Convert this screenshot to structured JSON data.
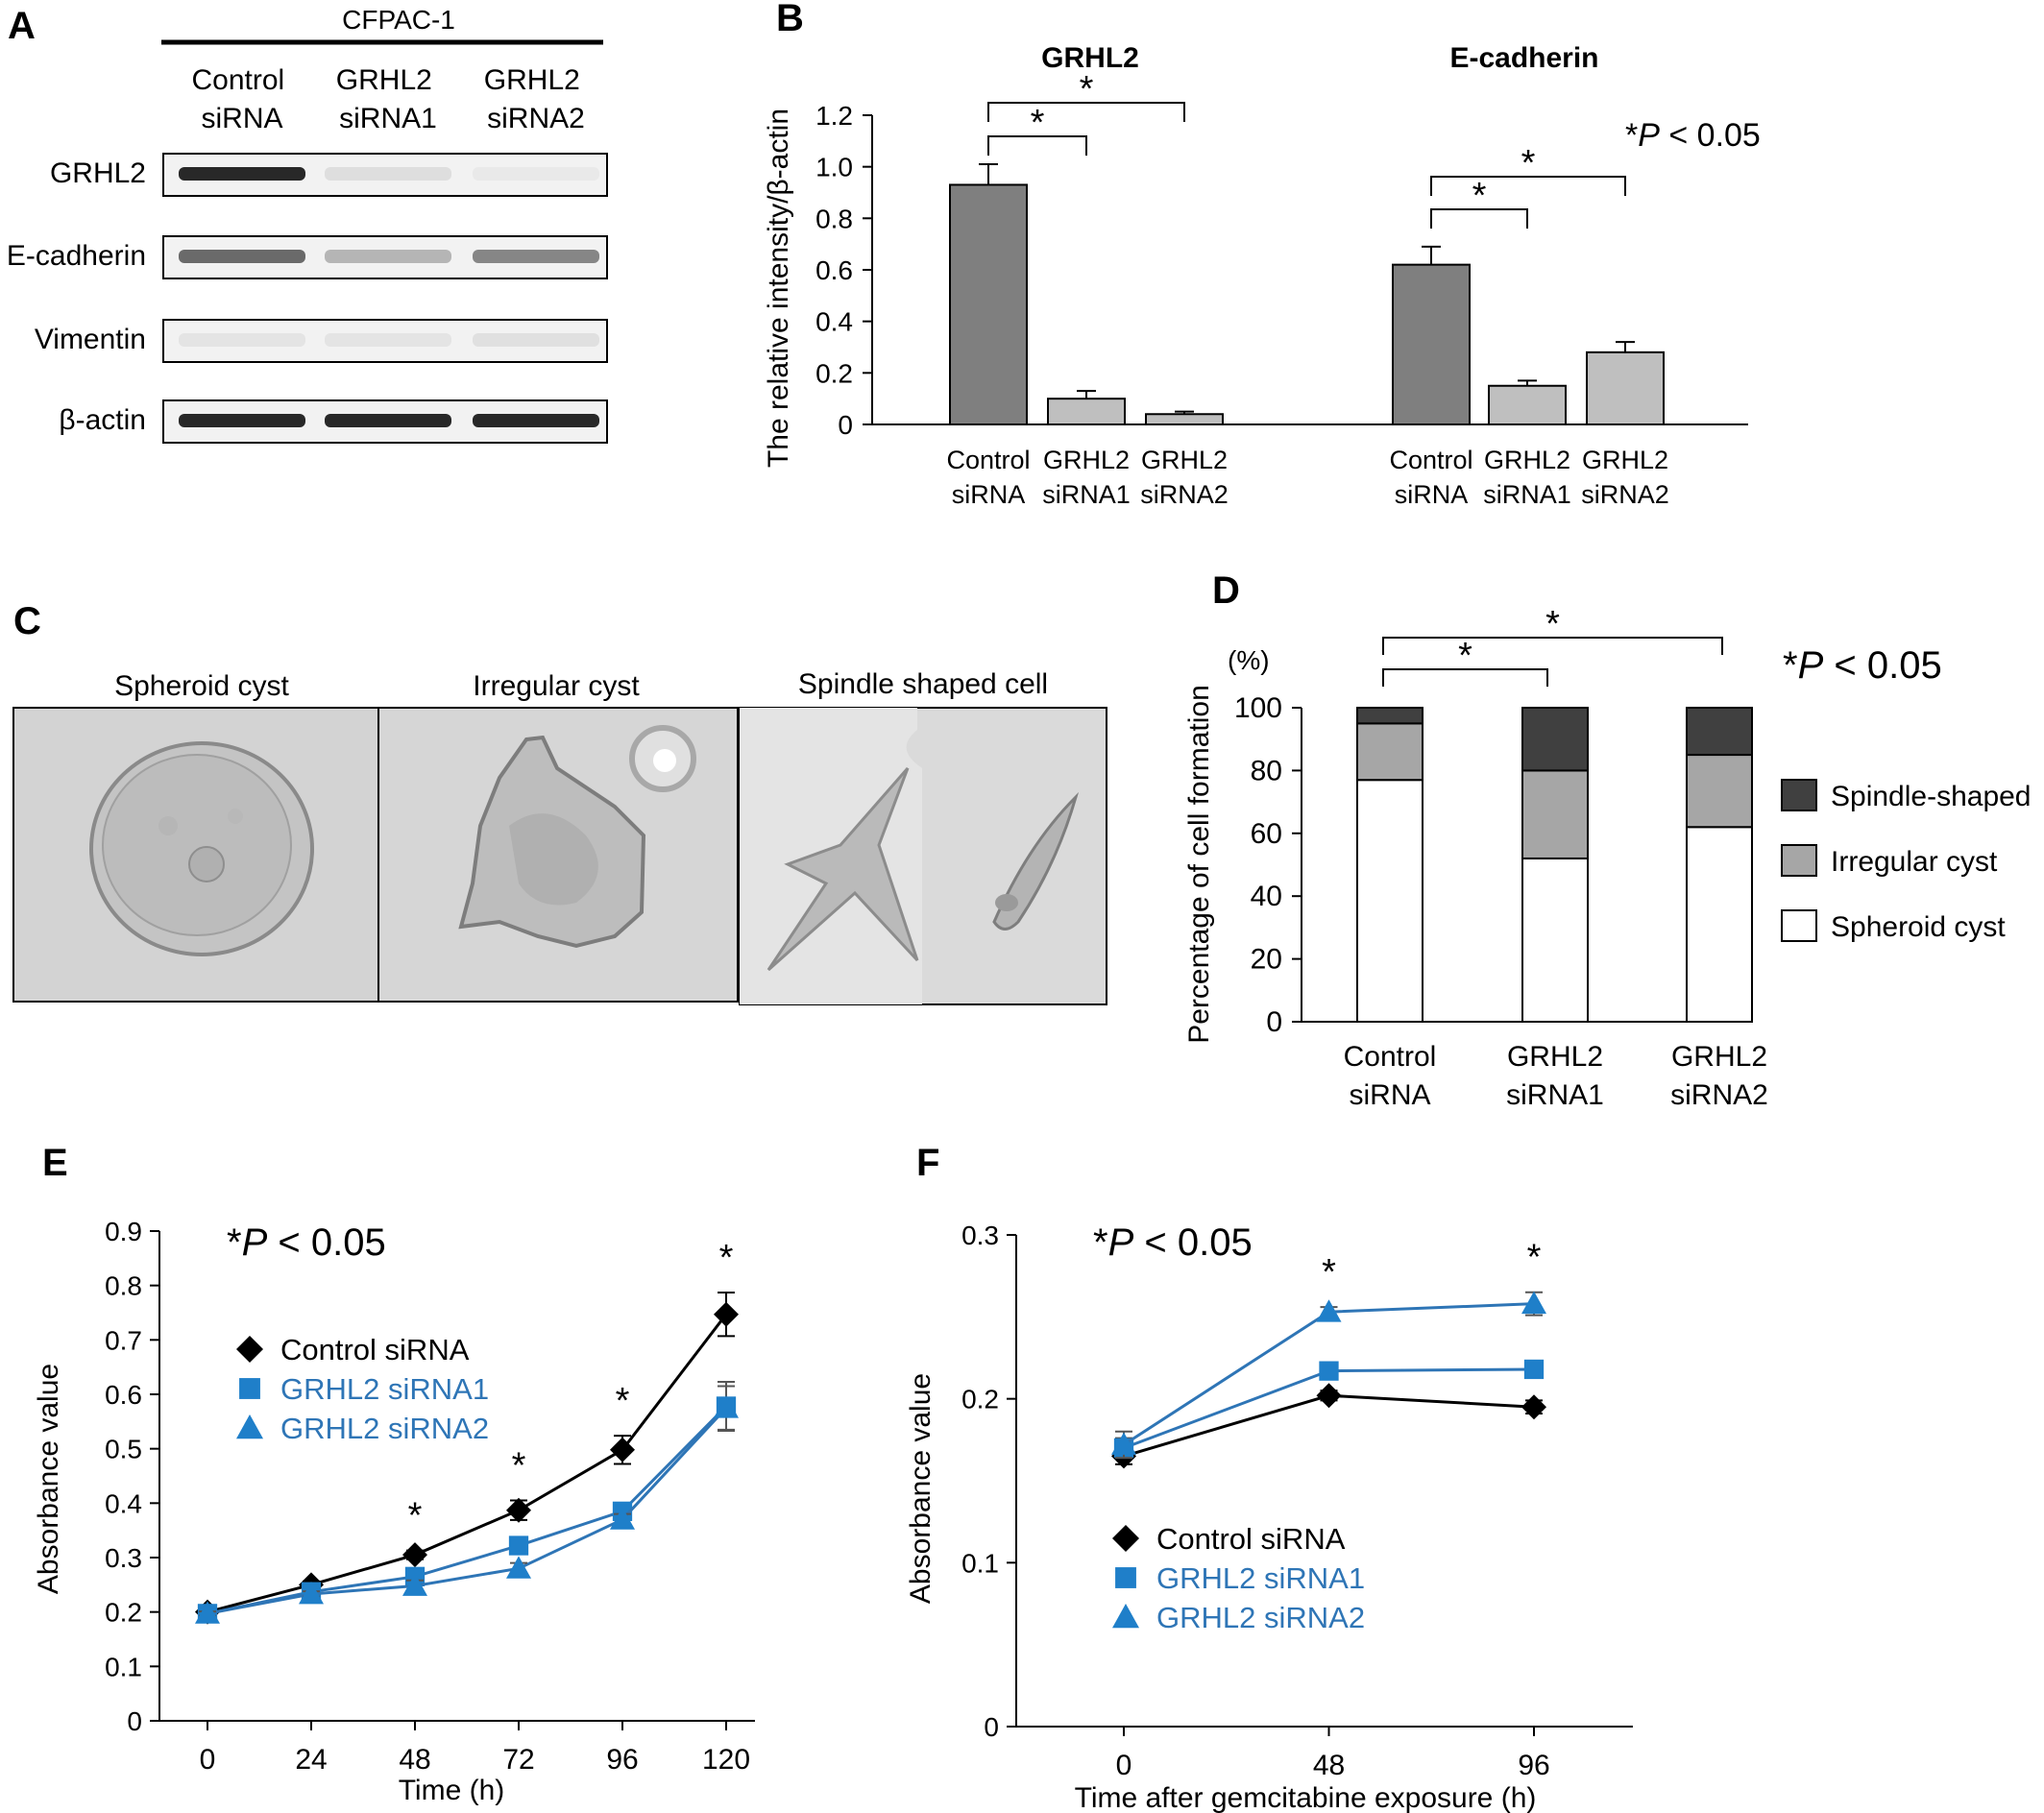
{
  "panels": {
    "A": {
      "letter": "A",
      "cell_line": "CFPAC-1",
      "lanes": [
        {
          "line1": "Control",
          "line2": "siRNA"
        },
        {
          "line1": "GRHL2",
          "line2": "siRNA1"
        },
        {
          "line1": "GRHL2",
          "line2": "siRNA2"
        }
      ],
      "blots": [
        {
          "label": "GRHL2",
          "intensity": [
            0.95,
            0.2,
            0.1
          ]
        },
        {
          "label": "E-cadherin",
          "intensity": [
            0.75,
            0.45,
            0.65
          ]
        },
        {
          "label": "Vimentin",
          "intensity": [
            0.15,
            0.15,
            0.18
          ]
        },
        {
          "label": "β-actin",
          "intensity": [
            0.95,
            0.95,
            0.95
          ]
        }
      ]
    },
    "B": {
      "letter": "B",
      "significance": "*P < 0.05",
      "star": "*"
    },
    "C": {
      "letter": "C",
      "images": [
        {
          "caption": "Spheroid cyst"
        },
        {
          "caption": "Irregular cyst"
        },
        {
          "caption": "Spindle shaped cell"
        }
      ]
    },
    "D": {
      "letter": "D",
      "significance": "*P < 0.05",
      "star": "*",
      "unit": "(%)"
    },
    "E": {
      "letter": "E",
      "significance": "*P < 0.05",
      "star": "*"
    },
    "F": {
      "letter": "F",
      "significance": "*P < 0.05",
      "star": "*"
    }
  },
  "colors": {
    "bar_control": "#7f7f7f",
    "bar_sirna": "#bfbfbf",
    "spindle": "#404040",
    "irregular": "#a6a6a6",
    "spheroid": "#ffffff",
    "control_line": "#000000",
    "sirna1": "#1f7fc9",
    "sirna2": "#1f7fc9",
    "sirna_line": "#2e75b6"
  },
  "chart_data": [
    {
      "id": "B",
      "type": "bar",
      "ylabel": "The relative intensity/β-actin",
      "ylim": [
        0,
        1.2
      ],
      "yticks": [
        "0",
        "0.2",
        "0.4",
        "0.6",
        "0.8",
        "1.0",
        "1.2"
      ],
      "groups": [
        {
          "title": "GRHL2",
          "categories": [
            {
              "line1": "Control",
              "line2": "siRNA"
            },
            {
              "line1": "GRHL2",
              "line2": "siRNA1"
            },
            {
              "line1": "GRHL2",
              "line2": "siRNA2"
            }
          ],
          "values": [
            0.93,
            0.1,
            0.04
          ],
          "errors": [
            0.08,
            0.03,
            0.01
          ]
        },
        {
          "title": "E-cadherin",
          "categories": [
            {
              "line1": "Control",
              "line2": "siRNA"
            },
            {
              "line1": "GRHL2",
              "line2": "siRNA1"
            },
            {
              "line1": "GRHL2",
              "line2": "siRNA2"
            }
          ],
          "values": [
            0.62,
            0.15,
            0.28
          ],
          "errors": [
            0.07,
            0.02,
            0.04
          ]
        }
      ],
      "grid": false
    },
    {
      "id": "D",
      "type": "bar",
      "stacked": true,
      "ylabel": "Percentage of cell formation",
      "ylim": [
        0,
        100
      ],
      "yticks": [
        "0",
        "20",
        "40",
        "60",
        "80",
        "100"
      ],
      "categories": [
        {
          "line1": "Control",
          "line2": "siRNA"
        },
        {
          "line1": "GRHL2",
          "line2": "siRNA1"
        },
        {
          "line1": "GRHL2",
          "line2": "siRNA2"
        }
      ],
      "series": [
        {
          "name": "Spheroid cyst",
          "values": [
            77,
            52,
            62
          ]
        },
        {
          "name": "Irregular cyst",
          "values": [
            18,
            28,
            23
          ]
        },
        {
          "name": "Spindle-shaped",
          "values": [
            5,
            20,
            15
          ]
        }
      ],
      "legend_order": [
        "Spindle-shaped",
        "Irregular cyst",
        "Spheroid cyst"
      ],
      "legend": "right",
      "grid": false
    },
    {
      "id": "E",
      "type": "line",
      "xlabel": "Time  (h)",
      "ylabel": "Absorbance value",
      "x": [
        0,
        24,
        48,
        72,
        96,
        120
      ],
      "xticks": [
        "0",
        "24",
        "48",
        "72",
        "96",
        "120"
      ],
      "ylim": [
        0,
        0.9
      ],
      "yticks": [
        "0",
        "0.1",
        "0.2",
        "0.3",
        "0.4",
        "0.5",
        "0.6",
        "0.7",
        "0.8",
        "0.9"
      ],
      "series": [
        {
          "name": "Control siRNA",
          "marker": "diamond",
          "values": [
            0.2,
            0.25,
            0.305,
            0.387,
            0.498,
            0.747
          ],
          "errors": [
            0.005,
            0.006,
            0.008,
            0.018,
            0.026,
            0.04
          ]
        },
        {
          "name": "GRHL2 siRNA1",
          "marker": "square",
          "values": [
            0.197,
            0.237,
            0.265,
            0.322,
            0.385,
            0.578
          ],
          "errors": [
            0.004,
            0.005,
            0.012,
            0.01,
            0.01,
            0.045
          ]
        },
        {
          "name": "GRHL2 siRNA2",
          "marker": "triangle",
          "values": [
            0.197,
            0.233,
            0.248,
            0.28,
            0.37,
            0.575
          ],
          "errors": [
            0.004,
            0.005,
            0.01,
            0.01,
            0.01,
            0.04
          ]
        }
      ],
      "significant_at": [
        48,
        72,
        96,
        120
      ],
      "legend": "top-left",
      "grid": false
    },
    {
      "id": "F",
      "type": "line",
      "xlabel": "Time after gemcitabine exposure (h)",
      "ylabel": "Absorbance value",
      "x": [
        0,
        48,
        96
      ],
      "xticks": [
        "0",
        "48",
        "96"
      ],
      "ylim": [
        0,
        0.3
      ],
      "yticks": [
        "0",
        "0.1",
        "0.2",
        "0.3"
      ],
      "series": [
        {
          "name": "Control siRNA",
          "marker": "diamond",
          "values": [
            0.165,
            0.202,
            0.195
          ],
          "errors": [
            0.005,
            0.003,
            0.004
          ]
        },
        {
          "name": "GRHL2 siRNA1",
          "marker": "square",
          "values": [
            0.17,
            0.217,
            0.218
          ],
          "errors": [
            0.006,
            0.002,
            0.002
          ]
        },
        {
          "name": "GRHL2 siRNA2",
          "marker": "triangle",
          "values": [
            0.172,
            0.253,
            0.258
          ],
          "errors": [
            0.008,
            0.003,
            0.007
          ]
        }
      ],
      "significant_at": [
        48,
        96
      ],
      "legend": "bottom-left",
      "grid": false
    }
  ]
}
